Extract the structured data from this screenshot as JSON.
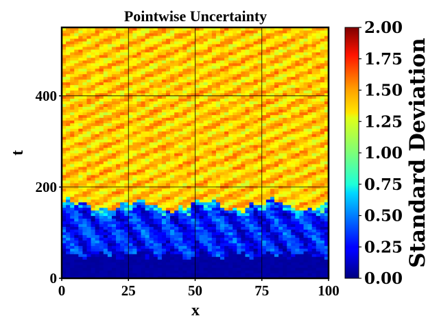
{
  "chart_data": {
    "type": "heatmap",
    "title": "Pointwise Uncertainty",
    "xlabel": "x",
    "ylabel": "t",
    "xlim": [
      0,
      100
    ],
    "ylim": [
      0,
      550
    ],
    "xticks": [
      "0",
      "25",
      "50",
      "75",
      "100"
    ],
    "yticks": [
      "0",
      "200",
      "400"
    ],
    "grid": true,
    "colormap": "jet",
    "colorbar": {
      "label": "Standard Deviation",
      "range": [
        0.0,
        2.0
      ],
      "ticks": [
        "0.00",
        "0.25",
        "0.50",
        "0.75",
        "1.00",
        "1.25",
        "1.50",
        "1.75",
        "2.00"
      ]
    },
    "regions": [
      {
        "t_range": [
          0,
          50
        ],
        "std_approx": 0.05,
        "description": "near-zero uncertainty"
      },
      {
        "t_range": [
          50,
          160
        ],
        "std_approx": 0.3,
        "description": "low uncertainty with wavy streaks"
      },
      {
        "t_range": [
          160,
          550
        ],
        "std_approx": 1.35,
        "description": "high uncertainty with diagonal streaks"
      }
    ]
  }
}
